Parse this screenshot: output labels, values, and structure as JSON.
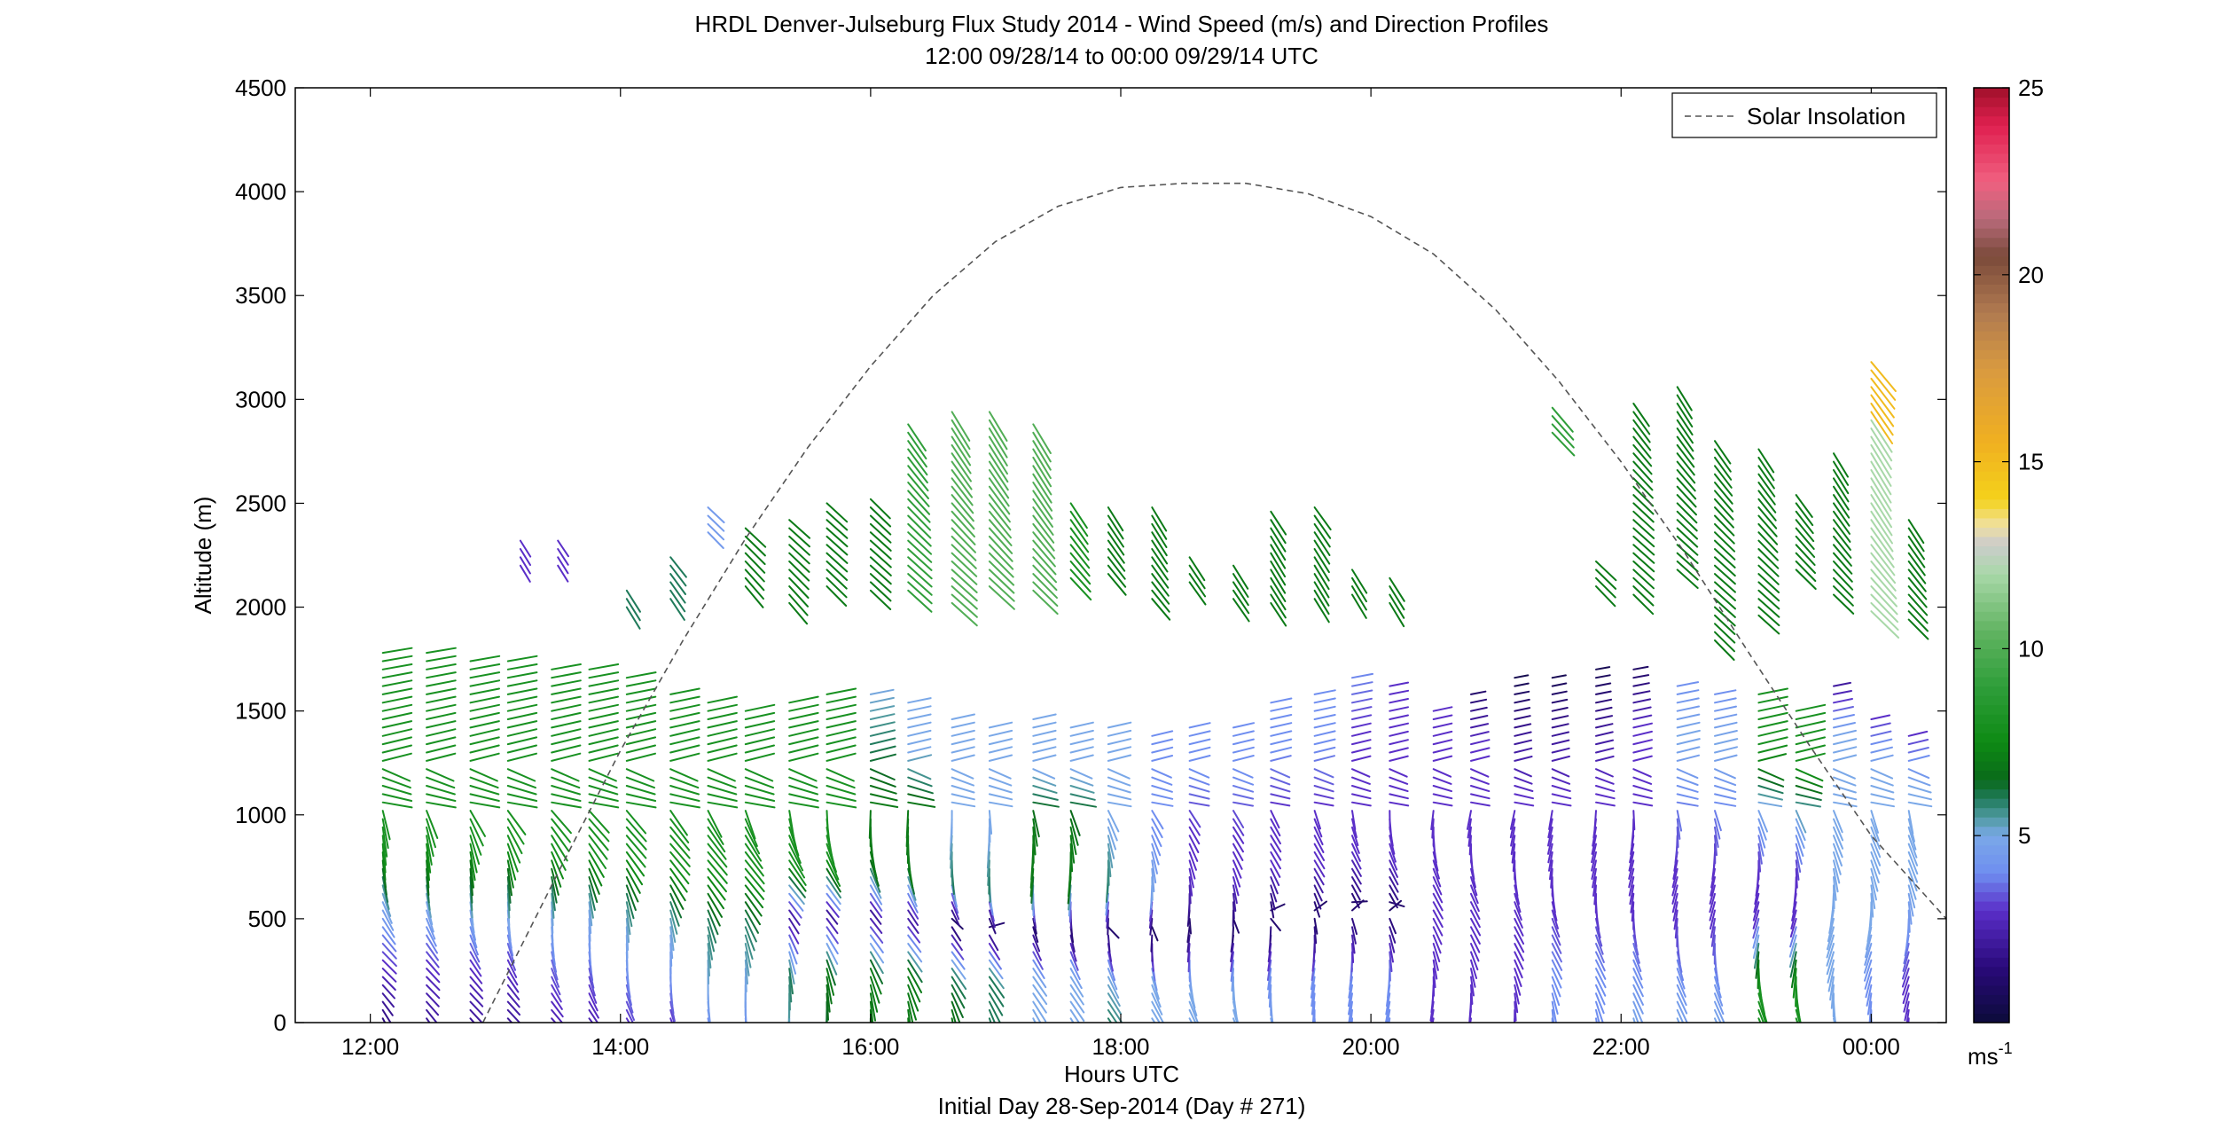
{
  "chart_data": {
    "type": "wind-barb-profile",
    "title": "HRDL Denver-Julseburg Flux Study 2014 - Wind Speed (m/s) and Direction Profiles",
    "subtitle": "12:00 09/28/14 to 00:00 09/29/14  UTC",
    "xlabel": "Hours UTC",
    "xlabel2": "Initial Day 28-Sep-2014 (Day # 271)",
    "ylabel": "Altitude (m)",
    "xlim": [
      11.4,
      24.6
    ],
    "ylim": [
      0,
      4500
    ],
    "x_ticks": [
      12,
      14,
      16,
      18,
      20,
      22,
      24
    ],
    "x_tick_labels": [
      "12:00",
      "14:00",
      "16:00",
      "18:00",
      "20:00",
      "22:00",
      "00:00"
    ],
    "y_ticks": [
      0,
      500,
      1000,
      1500,
      2000,
      2500,
      3000,
      3500,
      4000,
      4500
    ],
    "y_tick_labels": [
      "0",
      "500",
      "1000",
      "1500",
      "2000",
      "2500",
      "3000",
      "3500",
      "4000",
      "4500"
    ],
    "legend": {
      "label": "Solar Insolation",
      "position": "top-right"
    },
    "solar_insolation": {
      "x": [
        12.9,
        13.5,
        14.0,
        14.5,
        15.0,
        15.5,
        16.0,
        16.5,
        17.0,
        17.5,
        18.0,
        18.5,
        19.0,
        19.5,
        20.0,
        20.5,
        21.0,
        21.5,
        22.0,
        22.5,
        23.0,
        23.5,
        24.0,
        24.3,
        24.6
      ],
      "y": [
        0,
        720,
        1310,
        1840,
        2330,
        2770,
        3160,
        3500,
        3760,
        3930,
        4020,
        4040,
        4040,
        3990,
        3880,
        3700,
        3430,
        3090,
        2700,
        2270,
        1800,
        1340,
        900,
        700,
        500
      ]
    },
    "colorbar": {
      "range": [
        0,
        25
      ],
      "ticks": [
        5,
        10,
        15,
        20,
        25
      ],
      "tick_labels": [
        "5",
        "10",
        "15",
        "20",
        "25"
      ],
      "unit_base": "ms",
      "unit_exp": "-1",
      "colors": [
        [
          0,
          "#0b0b3a"
        ],
        [
          1.5,
          "#2a0a7a"
        ],
        [
          3,
          "#5a2ec8"
        ],
        [
          4,
          "#6f8ef0"
        ],
        [
          5,
          "#7aa8e8"
        ],
        [
          5.5,
          "#4f9aa0"
        ],
        [
          6,
          "#1f7a5a"
        ],
        [
          6.5,
          "#0a6a1a"
        ],
        [
          7.5,
          "#0d8a14"
        ],
        [
          9,
          "#2f9e3a"
        ],
        [
          10.5,
          "#62b462"
        ],
        [
          12,
          "#a8d8a8"
        ],
        [
          12.8,
          "#cccccc"
        ],
        [
          13.3,
          "#f0e0a0"
        ],
        [
          14,
          "#f4d21a"
        ],
        [
          15.5,
          "#f0b020"
        ],
        [
          17.5,
          "#d89a40"
        ],
        [
          19,
          "#b07a50"
        ],
        [
          20.5,
          "#7a4a3a"
        ],
        [
          21.5,
          "#b86a7a"
        ],
        [
          22.5,
          "#f06080"
        ],
        [
          24,
          "#e02050"
        ],
        [
          25,
          "#a0102a"
        ]
      ]
    },
    "profiles": {
      "times": [
        12.1,
        12.45,
        12.8,
        13.1,
        13.45,
        13.75,
        14.05,
        14.4,
        14.7,
        15.0,
        15.35,
        15.65,
        16.0,
        16.3,
        16.65,
        16.95,
        17.3,
        17.6,
        17.9,
        18.25,
        18.55,
        18.9,
        19.2,
        19.55,
        19.85,
        20.15,
        20.5,
        20.8,
        21.15,
        21.45,
        21.8,
        22.1,
        22.45,
        22.75,
        23.1,
        23.4,
        23.7,
        24.0,
        24.3
      ],
      "top_m": [
        1800,
        1780,
        1760,
        1740,
        1720,
        1700,
        1680,
        1600,
        1540,
        1520,
        1560,
        1600,
        1600,
        1560,
        1480,
        1420,
        1460,
        1440,
        1420,
        1380,
        1440,
        1420,
        1560,
        1580,
        1680,
        1640,
        1520,
        1600,
        1660,
        1680,
        1720,
        1700,
        1640,
        1600,
        1580,
        1500,
        1640,
        1460,
        1380
      ],
      "step_m": 40,
      "speed_ms": [
        [
          1.5,
          3,
          5,
          8,
          8,
          8,
          8
        ],
        [
          2,
          3,
          5,
          8,
          8,
          8,
          8
        ],
        [
          2,
          3,
          5,
          8,
          8,
          8,
          8
        ],
        [
          2,
          3,
          5,
          8,
          8,
          8,
          8
        ],
        [
          2.5,
          3.5,
          5,
          8,
          8,
          8,
          8
        ],
        [
          2.5,
          3.5,
          5,
          8,
          8,
          8,
          8
        ],
        [
          3,
          4,
          5.5,
          8,
          8,
          8,
          8
        ],
        [
          3,
          4,
          5.5,
          8,
          8,
          8,
          8
        ],
        [
          4,
          5,
          6,
          8,
          8,
          8,
          8
        ],
        [
          4,
          5,
          6,
          8,
          8,
          8,
          8
        ],
        [
          5,
          6,
          2,
          8,
          8,
          8,
          8
        ],
        [
          6,
          7,
          2,
          8,
          8,
          8,
          8
        ],
        [
          7,
          7,
          2,
          7,
          7,
          6,
          5
        ],
        [
          7,
          7,
          2,
          7,
          7,
          5,
          5
        ],
        [
          7,
          6,
          1,
          6,
          5,
          5,
          5
        ],
        [
          6,
          6,
          1,
          6,
          5,
          5,
          5
        ],
        [
          5,
          5,
          1,
          7,
          7,
          5,
          5
        ],
        [
          5,
          5,
          1,
          7,
          7,
          5,
          5
        ],
        [
          6,
          5,
          1,
          6,
          5,
          5,
          5
        ],
        [
          5,
          5,
          1,
          5,
          4,
          4,
          4
        ],
        [
          5,
          5,
          1,
          3,
          3,
          4,
          4
        ],
        [
          5,
          5,
          1,
          3,
          3,
          4,
          4
        ],
        [
          5,
          4,
          1,
          3,
          3,
          4,
          4
        ],
        [
          4,
          4,
          1,
          3,
          3,
          4,
          4
        ],
        [
          4,
          4,
          1,
          3,
          3,
          3,
          4
        ],
        [
          4,
          4,
          1,
          3,
          3,
          3,
          3
        ],
        [
          3,
          3,
          3,
          3,
          3,
          3,
          3
        ],
        [
          3,
          3,
          3,
          3,
          3,
          3,
          1
        ],
        [
          3,
          3,
          3,
          3,
          3,
          2,
          0.5
        ],
        [
          4,
          4,
          3,
          3,
          3,
          2,
          0.5
        ],
        [
          4,
          4,
          3,
          3,
          3,
          2,
          0.5
        ],
        [
          5,
          4,
          3,
          3,
          3,
          3,
          1
        ],
        [
          5,
          4,
          3,
          3,
          4,
          5,
          4
        ],
        [
          5,
          4,
          3,
          3,
          4,
          5,
          4
        ],
        [
          8,
          8,
          3,
          3,
          5,
          8,
          8
        ],
        [
          8,
          8,
          3,
          3,
          5,
          8,
          8
        ],
        [
          5,
          5,
          5,
          5,
          5,
          5,
          2
        ],
        [
          4,
          4,
          5,
          5,
          5,
          5,
          3
        ],
        [
          3,
          3,
          4,
          5,
          5,
          5,
          3
        ]
      ],
      "upper_layer": {
        "times": [
          13.2,
          13.5,
          14.05,
          14.4,
          14.7,
          15.0,
          15.35,
          15.65,
          16.0,
          16.3,
          16.65,
          16.95,
          17.3,
          17.6,
          17.9,
          18.25,
          18.55,
          18.9,
          19.2,
          19.55,
          19.85,
          20.15,
          21.45,
          21.8,
          22.1,
          22.45,
          22.75,
          23.1,
          23.4,
          23.7,
          24.0,
          24.3
        ],
        "bottom_m": [
          2200,
          2200,
          2000,
          2040,
          2360,
          2100,
          2020,
          2100,
          2080,
          2080,
          2020,
          2100,
          2080,
          2140,
          2160,
          2040,
          2120,
          2040,
          2020,
          2040,
          2060,
          2020,
          2840,
          2100,
          2060,
          2180,
          1840,
          1960,
          2180,
          2060,
          1980,
          1940
        ],
        "top_m": [
          2320,
          2320,
          2080,
          2240,
          2480,
          2380,
          2440,
          2500,
          2520,
          2900,
          2960,
          2960,
          2900,
          2500,
          2480,
          2500,
          2240,
          2200,
          2480,
          2480,
          2200,
          2140,
          2960,
          2240,
          3000,
          3060,
          2800,
          2760,
          2560,
          2740,
          3180,
          2440
        ],
        "speed_ms": [
          3,
          3,
          6,
          6,
          4.5,
          7,
          7,
          7,
          7,
          9,
          10,
          10,
          10,
          8,
          7,
          7,
          7,
          7,
          7,
          7,
          7,
          7,
          9,
          7,
          7,
          7,
          7,
          7,
          7,
          7,
          12,
          7
        ]
      }
    }
  }
}
